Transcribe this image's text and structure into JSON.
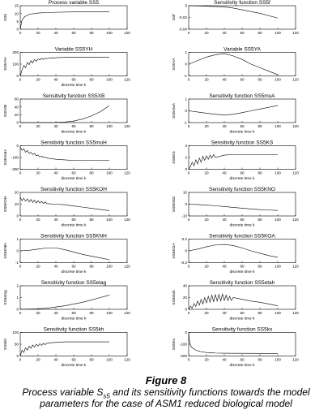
{
  "figure": {
    "title": "Figure 8",
    "caption_pre": "Process variable S",
    "caption_sub": "s5",
    "caption_post": " and its sensitivity functions towards the model",
    "caption_line2": "parameters for the case of ASM1 reduced biological model"
  },
  "chart_data": [
    {
      "type": "line",
      "title": "Process variable SS5",
      "xlabel": "",
      "ylabel": "SS5",
      "xlim": [
        0,
        120
      ],
      "xticks": [
        0,
        20,
        40,
        60,
        80,
        100,
        120
      ],
      "ylim": [
        0,
        15
      ],
      "yticks": [
        0,
        5,
        10,
        15
      ],
      "series": [
        {
          "x": [
            0,
            2,
            5,
            10,
            20,
            30,
            40,
            60,
            80,
            100
          ],
          "y": [
            0,
            6,
            8,
            9.5,
            10.3,
            10.6,
            10.8,
            11,
            11,
            11
          ]
        }
      ]
    },
    {
      "type": "line",
      "title": "Sensitivity function SS5f",
      "xlabel": "",
      "ylabel": "SSf",
      "xlim": [
        0,
        120
      ],
      "xticks": [
        0,
        20,
        40,
        60,
        80,
        100,
        120
      ],
      "ylim": [
        -0.04,
        0
      ],
      "yticks": [
        -0.04,
        -0.02,
        0
      ],
      "series": [
        {
          "x": [
            0,
            20,
            40,
            50,
            60,
            80,
            100
          ],
          "y": [
            0,
            -0.001,
            -0.002,
            -0.004,
            -0.007,
            -0.013,
            -0.021
          ]
        }
      ]
    },
    {
      "type": "line",
      "title": "Variable SS5YH",
      "xlabel": "discrete time k",
      "ylabel": "SS5YH",
      "xlim": [
        0,
        120
      ],
      "xticks": [
        0,
        20,
        40,
        60,
        80,
        100,
        120
      ],
      "ylim": [
        0,
        200
      ],
      "yticks": [
        0,
        100,
        200
      ],
      "series": [
        {
          "x": [
            0,
            2,
            4,
            6,
            8,
            10,
            12,
            14,
            16,
            18,
            20,
            22,
            24,
            26,
            28,
            30,
            32,
            34,
            36,
            38,
            40,
            50,
            60,
            80,
            100
          ],
          "y": [
            0,
            50,
            90,
            70,
            115,
            95,
            130,
            110,
            140,
            125,
            145,
            135,
            150,
            140,
            152,
            145,
            155,
            148,
            156,
            150,
            155,
            157,
            158,
            160,
            160
          ]
        }
      ]
    },
    {
      "type": "line",
      "title": "Variable SS5YA",
      "xlabel": "",
      "ylabel": "SS5YA",
      "xlim": [
        0,
        120
      ],
      "xticks": [
        0,
        20,
        40,
        60,
        80,
        100,
        120
      ],
      "ylim": [
        -1,
        1
      ],
      "yticks": [
        -1,
        0,
        1
      ],
      "series": [
        {
          "x": [
            0,
            10,
            20,
            30,
            40,
            50,
            60,
            70,
            80,
            90,
            100
          ],
          "y": [
            0,
            0.3,
            0.6,
            0.8,
            0.9,
            0.7,
            0.4,
            0,
            -0.3,
            -0.6,
            -0.9
          ]
        }
      ]
    },
    {
      "type": "line",
      "title": "Sensitivity function SS5XB",
      "xlabel": "discrete time k",
      "ylabel": "SS5XB",
      "xlim": [
        0,
        120
      ],
      "xticks": [
        0,
        20,
        40,
        60,
        80,
        100,
        120
      ],
      "ylim": [
        0,
        60
      ],
      "yticks": [
        0,
        20,
        40,
        60
      ],
      "series": [
        {
          "x": [
            0,
            20,
            40,
            50,
            60,
            70,
            80,
            90,
            100
          ],
          "y": [
            0,
            0,
            0.3,
            1.5,
            4,
            9,
            17,
            28,
            43
          ]
        }
      ]
    },
    {
      "type": "line",
      "title": "Sensitivity function SS5muA",
      "xlabel": "discrete time k",
      "ylabel": "SS5muA",
      "xlim": [
        0,
        120
      ],
      "xticks": [
        0,
        20,
        40,
        60,
        80,
        100,
        120
      ],
      "ylim": [
        -1,
        1
      ],
      "yticks": [
        -1,
        0,
        1
      ],
      "series": [
        {
          "x": [
            0,
            10,
            20,
            30,
            40,
            50,
            60,
            70,
            80,
            90,
            100
          ],
          "y": [
            0,
            -0.1,
            -0.2,
            -0.3,
            -0.35,
            -0.3,
            -0.15,
            0,
            0.15,
            0.3,
            0.45
          ]
        }
      ]
    },
    {
      "type": "line",
      "title": "Sensitivity function SS5muH",
      "xlabel": "discrete time k",
      "ylabel": "SS5muH",
      "xlim": [
        0,
        120
      ],
      "xticks": [
        0,
        20,
        40,
        60,
        80,
        100,
        120
      ],
      "ylim": [
        -200,
        0
      ],
      "yticks": [
        -200,
        -100,
        0
      ],
      "series": [
        {
          "x": [
            0,
            2,
            4,
            6,
            8,
            10,
            12,
            14,
            16,
            18,
            20,
            22,
            24,
            26,
            28,
            30,
            40,
            50,
            60,
            80,
            100
          ],
          "y": [
            -10,
            -40,
            -25,
            -55,
            -40,
            -65,
            -55,
            -75,
            -65,
            -85,
            -78,
            -95,
            -88,
            -100,
            -95,
            -105,
            -115,
            -120,
            -125,
            -125,
            -125
          ]
        }
      ]
    },
    {
      "type": "line",
      "title": "Sensitivity function SS5KS",
      "xlabel": "discrete time k",
      "ylabel": "SS5KS",
      "xlim": [
        0,
        120
      ],
      "xticks": [
        0,
        20,
        40,
        60,
        80,
        100,
        120
      ],
      "ylim": [
        0,
        4
      ],
      "yticks": [
        0,
        2,
        4
      ],
      "series": [
        {
          "x": [
            0,
            2,
            4,
            6,
            8,
            10,
            12,
            14,
            16,
            18,
            20,
            22,
            24,
            26,
            28,
            30,
            40,
            50,
            60,
            80,
            100
          ],
          "y": [
            0,
            0.5,
            1.2,
            0.6,
            1.6,
            0.9,
            1.9,
            1.2,
            2.2,
            1.5,
            2.3,
            1.7,
            2.4,
            1.9,
            2.5,
            2,
            2.4,
            2.5,
            2.5,
            2.5,
            2.5
          ]
        }
      ]
    },
    {
      "type": "line",
      "title": "Sensitivity function SS5KOH",
      "xlabel": "discrete time k",
      "ylabel": "SS5KOH",
      "xlim": [
        0,
        120
      ],
      "xticks": [
        0,
        20,
        40,
        60,
        80,
        100,
        120
      ],
      "ylim": [
        0,
        20
      ],
      "yticks": [
        0,
        10,
        20
      ],
      "series": [
        {
          "x": [
            0,
            2,
            4,
            6,
            8,
            10,
            12,
            14,
            16,
            18,
            20,
            22,
            24,
            26,
            28,
            30,
            40,
            50,
            60,
            70,
            80,
            90,
            100
          ],
          "y": [
            16,
            13,
            15,
            12.5,
            14.5,
            12,
            14,
            11.5,
            13.5,
            11,
            13,
            11,
            12.5,
            10.5,
            12,
            10.5,
            10,
            9.5,
            8.5,
            7.5,
            6.5,
            5.5,
            4.5
          ]
        }
      ]
    },
    {
      "type": "line",
      "title": "Sensitivity function SS5KNO",
      "xlabel": "discrete time k",
      "ylabel": "SS5KNO",
      "xlim": [
        0,
        120
      ],
      "xticks": [
        0,
        20,
        40,
        60,
        80,
        100,
        120
      ],
      "ylim": [
        -10,
        10
      ],
      "yticks": [
        -10,
        0,
        10
      ],
      "series": [
        {
          "x": [
            0,
            10,
            20,
            30,
            40,
            50,
            60,
            70,
            80,
            90,
            100
          ],
          "y": [
            0,
            -0.3,
            -0.8,
            -1.3,
            -2,
            -2.7,
            -3.4,
            -4,
            -4.6,
            -5,
            -5.3
          ]
        }
      ]
    },
    {
      "type": "line",
      "title": "Sensitivity function SS5KNH",
      "xlabel": "discrete time k",
      "ylabel": "SS5KNH",
      "xlim": [
        0,
        120
      ],
      "xticks": [
        0,
        20,
        40,
        60,
        80,
        100,
        120
      ],
      "ylim": [
        -1,
        1
      ],
      "yticks": [
        -1,
        0,
        1
      ],
      "series": [
        {
          "x": [
            0,
            10,
            20,
            30,
            40,
            50,
            60,
            70,
            80,
            90,
            100
          ],
          "y": [
            0,
            0.05,
            0.15,
            0.25,
            0.25,
            0.1,
            -0.1,
            -0.3,
            -0.45,
            -0.6,
            -0.75
          ]
        }
      ]
    },
    {
      "type": "line",
      "title": "Sensitivity function SS5KOA",
      "xlabel": "discrete time k",
      "ylabel": "SS5KOA",
      "xlim": [
        0,
        120
      ],
      "xticks": [
        0,
        20,
        40,
        60,
        80,
        100,
        120
      ],
      "ylim": [
        -0.2,
        0.2
      ],
      "yticks": [
        -0.2,
        0,
        0.2
      ],
      "series": [
        {
          "x": [
            0,
            10,
            20,
            30,
            40,
            50,
            60,
            70,
            80,
            90,
            100
          ],
          "y": [
            0,
            0.03,
            0.07,
            0.1,
            0.11,
            0.09,
            0.05,
            0,
            -0.04,
            -0.08,
            -0.11
          ]
        }
      ]
    },
    {
      "type": "line",
      "title": "Sensitivity function SS5etag",
      "xlabel": "discrete time k",
      "ylabel": "SS5etag",
      "xlim": [
        0,
        120
      ],
      "xticks": [
        0,
        20,
        40,
        60,
        80,
        100,
        120
      ],
      "ylim": [
        0,
        2
      ],
      "yticks": [
        0,
        1,
        2
      ],
      "series": [
        {
          "x": [
            0,
            10,
            20,
            30,
            40,
            50,
            60,
            70,
            80,
            90,
            100
          ],
          "y": [
            0,
            0.02,
            0.05,
            0.1,
            0.2,
            0.3,
            0.45,
            0.6,
            0.8,
            1,
            1.2
          ]
        }
      ]
    },
    {
      "type": "line",
      "title": "Sensitivity function SS5etah",
      "xlabel": "discrete time k",
      "ylabel": "SS5etah",
      "xlim": [
        0,
        120
      ],
      "xticks": [
        0,
        20,
        40,
        60,
        80,
        100,
        120
      ],
      "ylim": [
        0,
        40
      ],
      "yticks": [
        0,
        20,
        40
      ],
      "series": [
        {
          "x": [
            0,
            2,
            4,
            6,
            8,
            10,
            12,
            14,
            16,
            18,
            20,
            22,
            24,
            26,
            28,
            30,
            32,
            34,
            36,
            38,
            40,
            42,
            44,
            46,
            48,
            50,
            60,
            70,
            80,
            90,
            100
          ],
          "y": [
            0,
            5,
            2,
            10,
            5,
            14,
            7,
            17,
            9,
            20,
            11,
            22,
            12,
            24,
            13,
            25,
            14,
            25,
            14,
            26,
            15,
            24,
            15,
            22,
            15,
            20,
            17,
            14,
            12,
            9,
            6
          ]
        }
      ]
    },
    {
      "type": "line",
      "title": "Sensitivity function SS5kh",
      "xlabel": "discrete time k",
      "ylabel": "SS5kh",
      "xlim": [
        0,
        120
      ],
      "xticks": [
        0,
        20,
        40,
        60,
        80,
        100,
        120
      ],
      "ylim": [
        0,
        100
      ],
      "yticks": [
        0,
        50,
        100
      ],
      "series": [
        {
          "x": [
            0,
            2,
            4,
            6,
            8,
            10,
            12,
            14,
            16,
            18,
            20,
            22,
            24,
            26,
            28,
            30,
            40,
            50,
            60,
            70,
            80,
            90,
            100
          ],
          "y": [
            0,
            25,
            15,
            35,
            25,
            42,
            33,
            47,
            38,
            50,
            42,
            52,
            45,
            54,
            48,
            55,
            58,
            60,
            60,
            60,
            60,
            60,
            60
          ]
        }
      ]
    },
    {
      "type": "line",
      "title": "Sensitivity function SS5kx",
      "xlabel": "discrete time k",
      "ylabel": "SS5Kx",
      "xlim": [
        0,
        120
      ],
      "xticks": [
        0,
        20,
        40,
        60,
        80,
        100,
        120
      ],
      "ylim": [
        -200,
        0
      ],
      "yticks": [
        -200,
        -100,
        0
      ],
      "series": [
        {
          "x": [
            0,
            1,
            2,
            4,
            6,
            8,
            10,
            12,
            14,
            16,
            18,
            20,
            22,
            24,
            26,
            28,
            30,
            40,
            50,
            60,
            80,
            100
          ],
          "y": [
            0,
            -80,
            -110,
            -130,
            -140,
            -150,
            -155,
            -160,
            -163,
            -166,
            -168,
            -170,
            -171,
            -172,
            -173,
            -174,
            -175,
            -176,
            -177,
            -177,
            -178,
            -178
          ]
        }
      ]
    }
  ]
}
